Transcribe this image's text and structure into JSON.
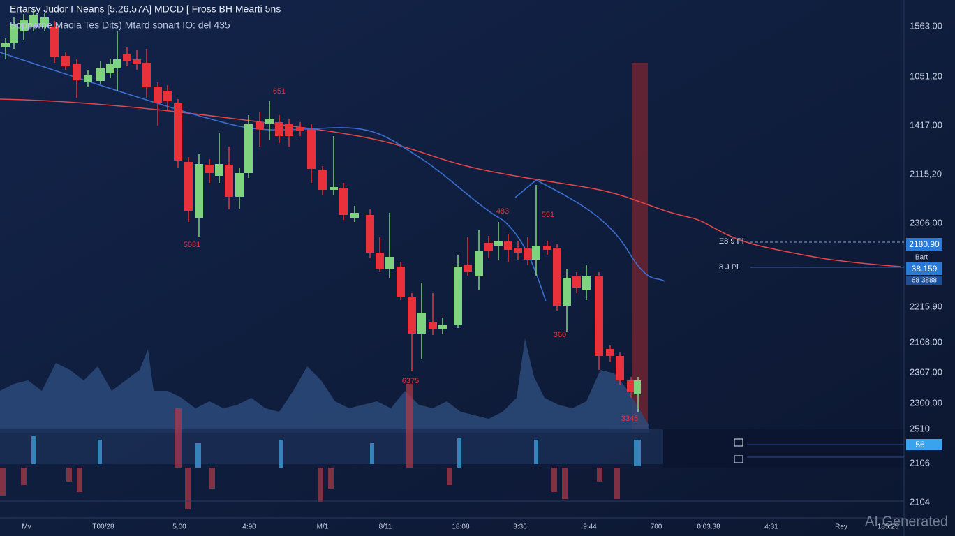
{
  "header": {
    "title": "Ertarsy Judor I Neans [5.26.57A] MDCD [ Fross BH Mearti 5ns",
    "subtitle": "Bopperne Maoia Tes Dits) Mtard sonart IO: del 435"
  },
  "annotations": [
    "651",
    "5081",
    "483",
    "551",
    "360",
    "6375",
    "3345"
  ],
  "price_axis": [
    "1563.00",
    "1051,20",
    "1417,00",
    "2115,20",
    "2306.00",
    "2215.90",
    "2108.00",
    "2307.00",
    "2300.00",
    "2510",
    "2106",
    "2104"
  ],
  "price_tags": {
    "upper_marker": "Ξ8 9 Pl",
    "upper_price": "2180.90",
    "tag_caption": "Bart",
    "lower_marker": "8 J Pl",
    "lower_price": "38.159",
    "lower_caption": "68 3888",
    "panel_value": "56"
  },
  "time_axis": [
    "Mv",
    "T00/28",
    "5.00",
    "4:90",
    "M/1",
    "8/11",
    "18:08",
    "3:36",
    "9:44",
    "700",
    "0:03.38",
    "4:31",
    "Rey",
    "185:25"
  ],
  "watermark": "AI Generated"
}
